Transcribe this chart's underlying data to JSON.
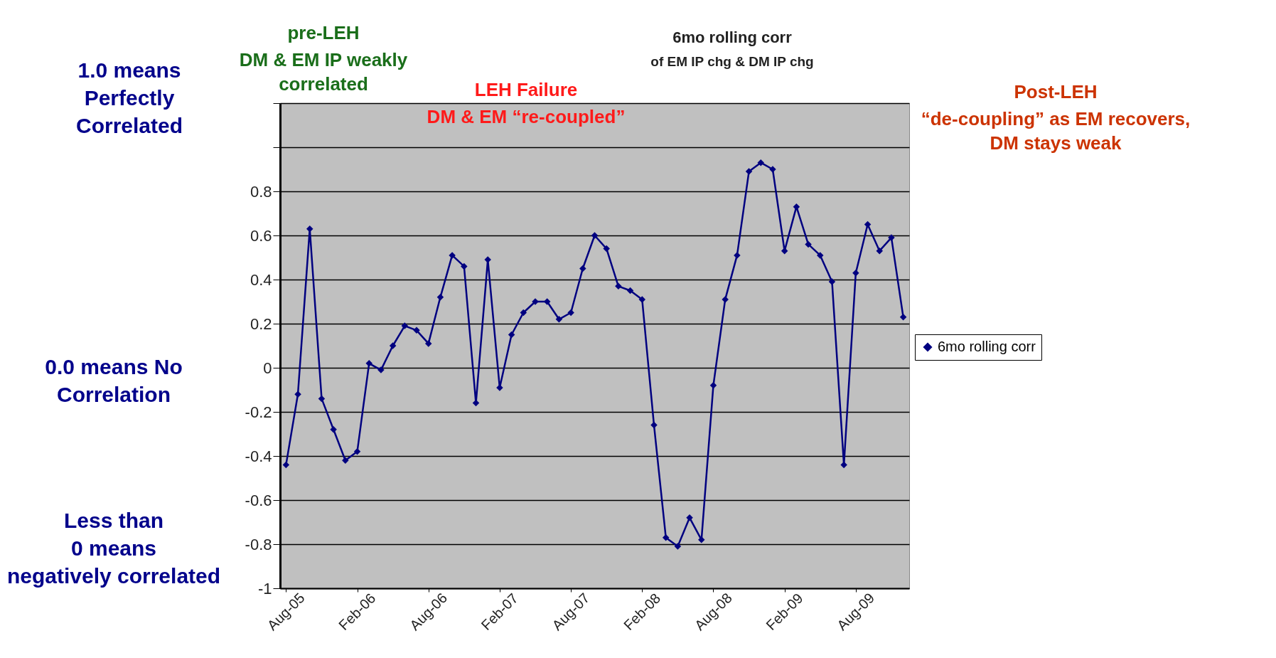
{
  "chart_data": {
    "type": "line",
    "title": "6mo rolling corr",
    "subtitle": "of EM IP chg & DM IP chg",
    "categories": [
      "Aug-05",
      null,
      null,
      null,
      null,
      null,
      "Feb-06",
      null,
      null,
      null,
      null,
      null,
      "Aug-06",
      null,
      null,
      null,
      null,
      null,
      "Feb-07",
      null,
      null,
      null,
      null,
      null,
      "Aug-07",
      null,
      null,
      null,
      null,
      null,
      "Feb-08",
      null,
      null,
      null,
      null,
      null,
      "Aug-08",
      null,
      null,
      null,
      null,
      null,
      "Feb-09",
      null,
      null,
      null,
      null,
      null,
      "Aug-09",
      null,
      null,
      null,
      null
    ],
    "series": [
      {
        "name": "6mo rolling corr",
        "color": "#000080",
        "values": [
          -0.44,
          -0.12,
          0.63,
          -0.14,
          -0.28,
          -0.42,
          -0.38,
          0.02,
          -0.01,
          0.1,
          0.19,
          0.17,
          0.11,
          0.32,
          0.51,
          0.46,
          -0.16,
          0.49,
          -0.09,
          0.15,
          0.25,
          0.3,
          0.3,
          0.22,
          0.25,
          0.45,
          0.6,
          0.54,
          0.37,
          0.35,
          0.31,
          -0.26,
          -0.77,
          -0.81,
          -0.68,
          -0.78,
          -0.08,
          0.31,
          0.51,
          0.89,
          0.93,
          0.9,
          0.53,
          0.73,
          0.56,
          0.51,
          0.39,
          -0.44,
          0.43,
          0.65,
          0.53,
          0.59,
          0.23
        ]
      }
    ],
    "ylim": [
      -1,
      1.2
    ],
    "yticks": [
      -1,
      -0.8,
      -0.6,
      -0.4,
      -0.2,
      0,
      0.2,
      0.4,
      0.6,
      0.8,
      {
        "value": 1,
        "label": null
      },
      {
        "value": 1.2,
        "label": null
      }
    ],
    "grid": "y",
    "legend": "right",
    "marker": "diamond",
    "line_style": "solid",
    "annotations": [
      "1.0 means Perfectly Correlated",
      "0.0 means No Correlation",
      "Less than 0 means negatively correlated",
      "pre-LEH",
      "DM & EM IP weakly correlated",
      "LEH Failure",
      "DM & EM “re-coupled”",
      "Post-LEH",
      "“de-coupling” as EM recovers, DM stays weak"
    ]
  }
}
